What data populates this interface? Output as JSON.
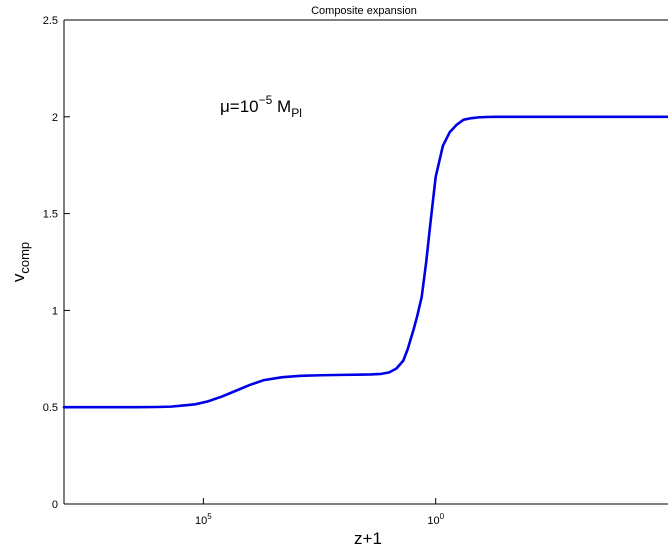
{
  "chart_data": {
    "type": "line",
    "title": "Composite expansion",
    "xlabel": "z+1",
    "ylabel": "v",
    "ylabel_subscript": "comp",
    "x_scale": "log-reversed",
    "xlim": [
      100000000,
      1e-05
    ],
    "ylim": [
      0,
      2.5
    ],
    "grid": false,
    "annotation": {
      "prefix": "μ=10",
      "superscript": "−5",
      "mid": " M",
      "subscript": "Pl"
    },
    "x_ticks": [
      {
        "value": 100000,
        "base": "10",
        "exp": "5"
      },
      {
        "value": 1,
        "base": "10",
        "exp": "0"
      }
    ],
    "y_ticks": [
      {
        "value": 0,
        "label": "0"
      },
      {
        "value": 0.5,
        "label": "0.5"
      },
      {
        "value": 1,
        "label": "1"
      },
      {
        "value": 1.5,
        "label": "1.5"
      },
      {
        "value": 2,
        "label": "2"
      },
      {
        "value": 2.5,
        "label": "2.5"
      }
    ],
    "series": [
      {
        "color": "#0000e6",
        "x": [
          100000000,
          10000000,
          3000000,
          1000000,
          500000,
          300000,
          150000,
          80000,
          40000,
          20000,
          10000,
          5000,
          2000,
          800,
          300,
          100,
          50,
          25,
          15,
          10,
          7,
          5,
          4,
          3,
          2.5,
          2,
          1.6,
          1.3,
          1,
          0.7,
          0.5,
          0.35,
          0.25,
          0.17,
          0.12,
          0.08,
          0.05,
          0.03,
          0.02,
          0.01,
          0.003,
          0.001,
          0.0001,
          1e-05
        ],
        "y": [
          0.5,
          0.5,
          0.5,
          0.501,
          0.503,
          0.508,
          0.515,
          0.53,
          0.555,
          0.585,
          0.615,
          0.64,
          0.655,
          0.662,
          0.665,
          0.667,
          0.668,
          0.669,
          0.672,
          0.68,
          0.7,
          0.74,
          0.8,
          0.9,
          0.97,
          1.07,
          1.25,
          1.45,
          1.69,
          1.85,
          1.92,
          1.96,
          1.985,
          1.993,
          1.997,
          1.999,
          2.0,
          2.0,
          2.0,
          2.0,
          2.0,
          2.0,
          2.0,
          2.0
        ]
      }
    ]
  }
}
